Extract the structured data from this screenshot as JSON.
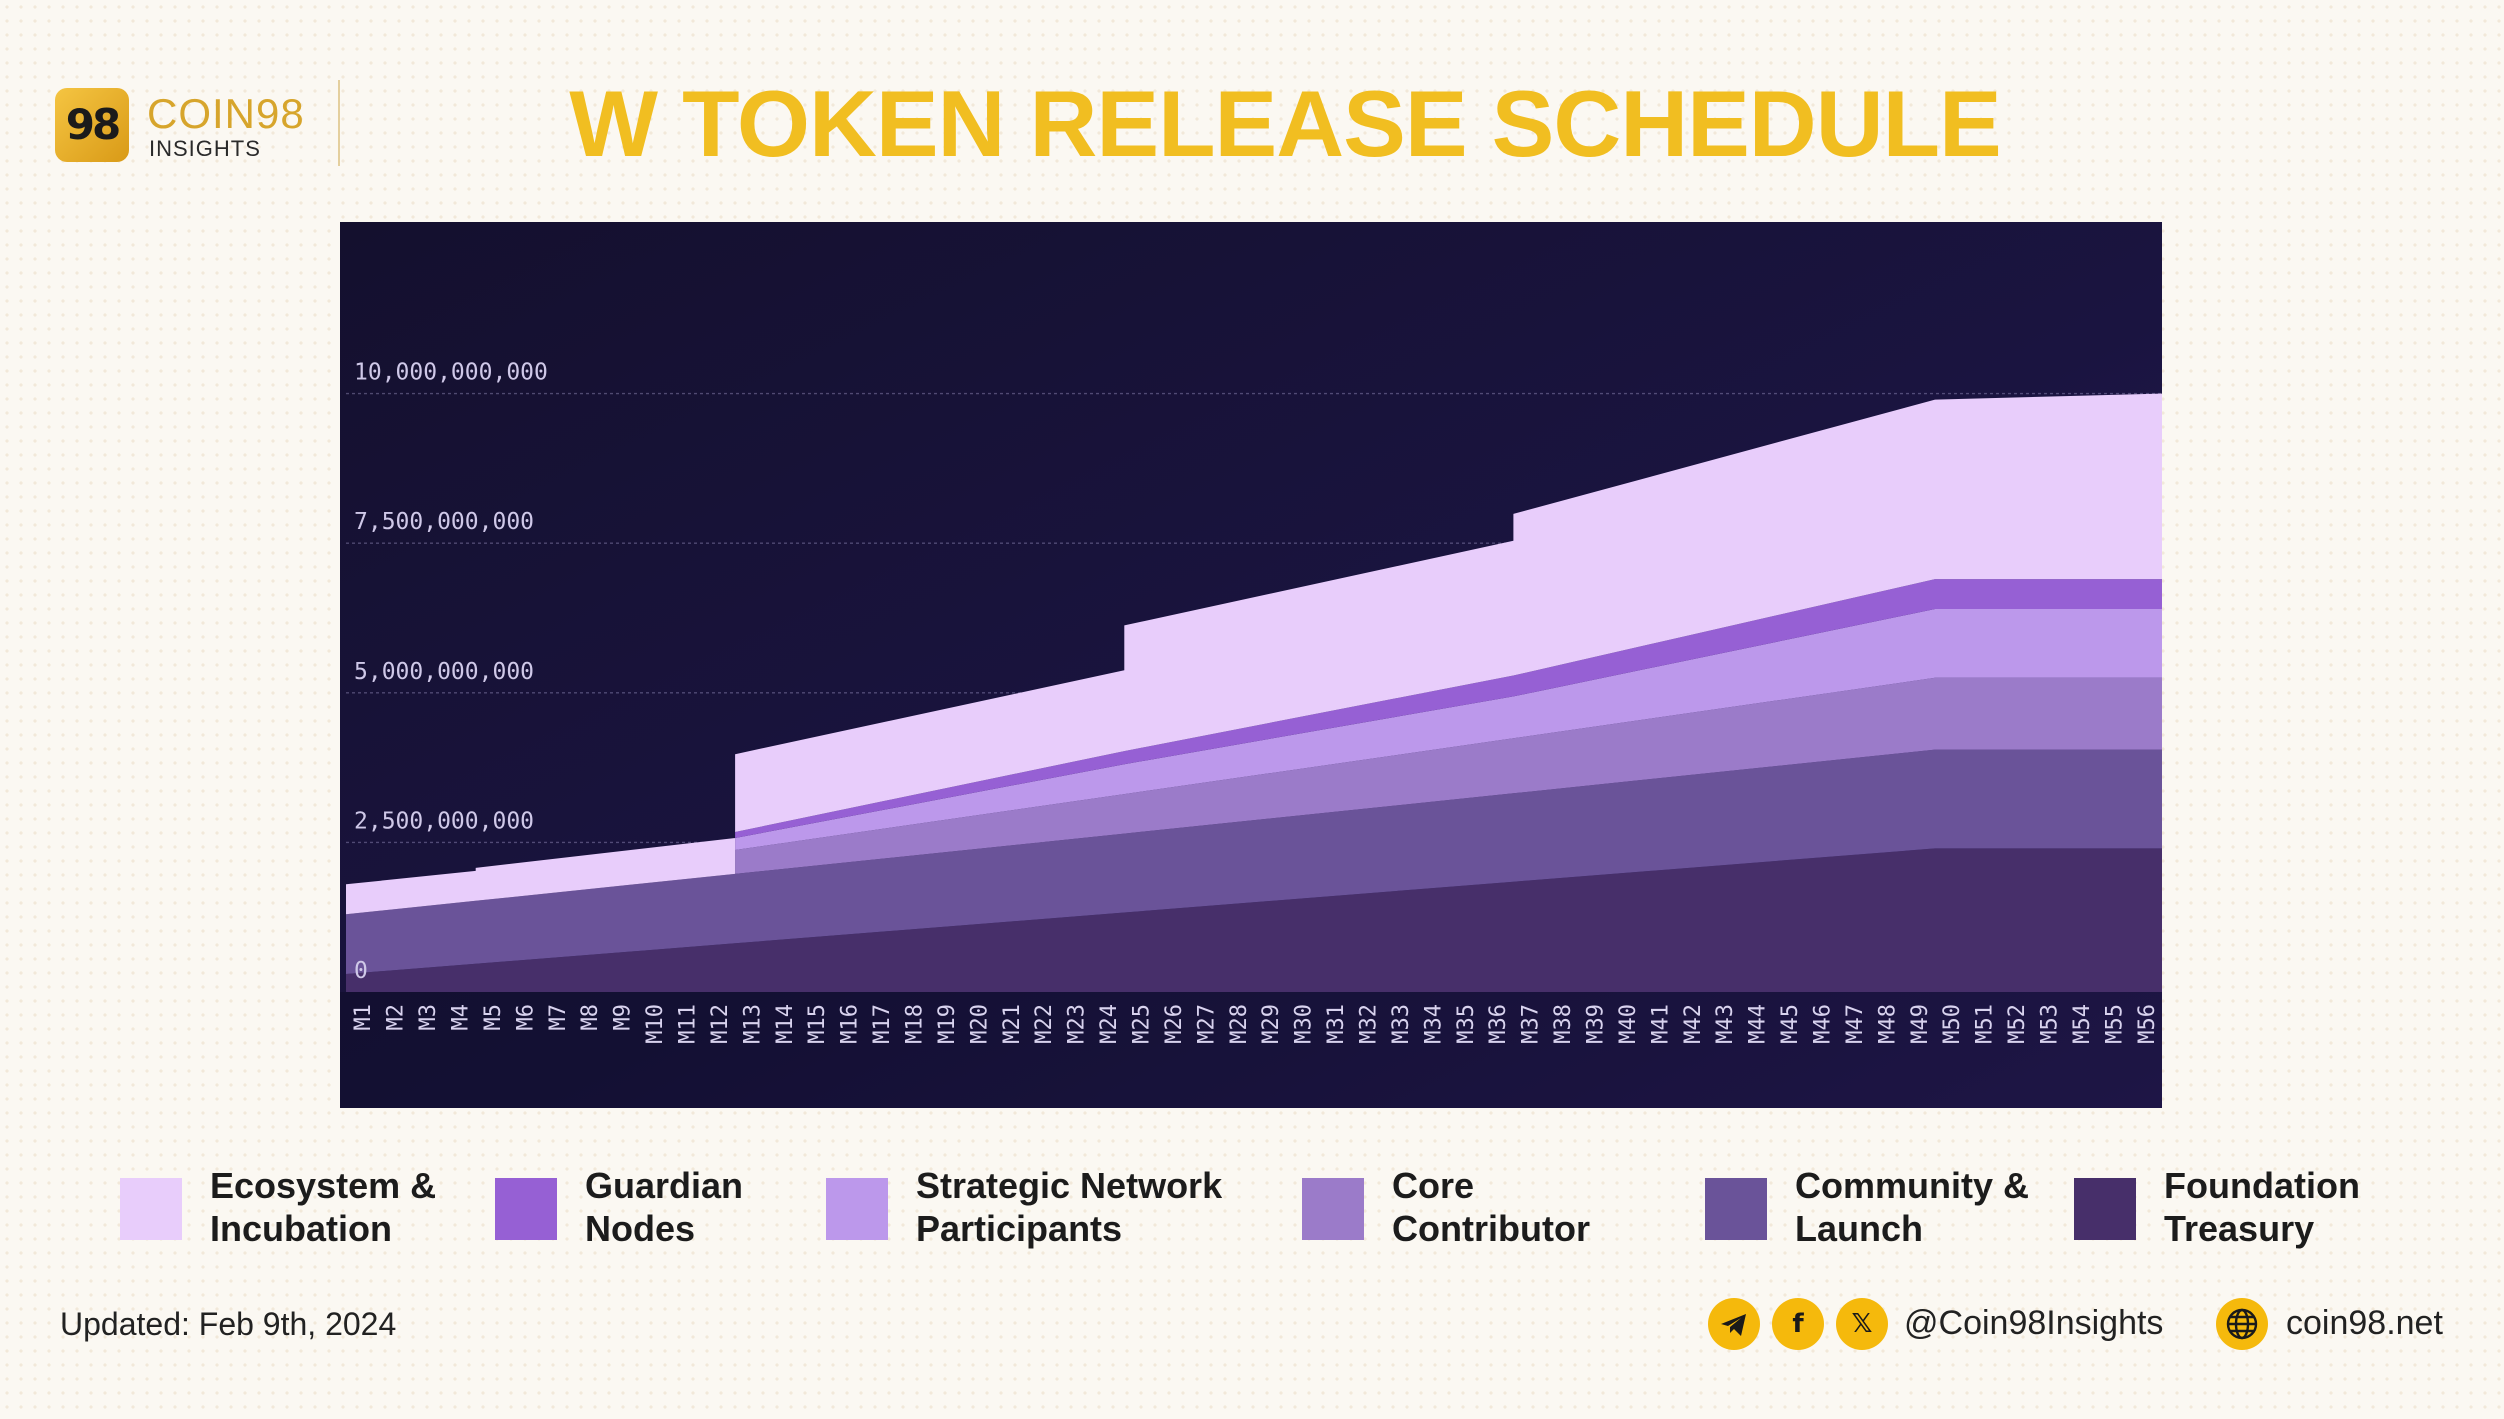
{
  "brand": {
    "badge": "98",
    "name": "COIN98",
    "sub": "INSIGHTS"
  },
  "title": "W TOKEN RELEASE SCHEDULE",
  "updated": "Updated: Feb 9th, 2024",
  "social": {
    "telegram_icon": "telegram-icon",
    "facebook_icon": "facebook-icon",
    "x_icon": "x-icon",
    "handle": "@Coin98Insights",
    "globe_icon": "globe-icon",
    "website": "coin98.net"
  },
  "colors": {
    "background": "#fbf8f2",
    "title": "#f1be21",
    "brand": "#d7a52c",
    "chart_bg_dark": "#14102e",
    "chart_bg_light": "#2a1d5c"
  },
  "chart_data": {
    "type": "area",
    "stacked": true,
    "step": true,
    "title": "",
    "xlabel": "",
    "ylabel": "",
    "ylim": [
      0,
      12500000000
    ],
    "y_ticks": [
      {
        "value": 0,
        "label": "0"
      },
      {
        "value": 2500000000,
        "label": "2,500,000,000"
      },
      {
        "value": 5000000000,
        "label": "5,000,000,000"
      },
      {
        "value": 7500000000,
        "label": "7,500,000,000"
      },
      {
        "value": 10000000000,
        "label": "10,000,000,000"
      }
    ],
    "grid": true,
    "categories": [
      "M1",
      "M2",
      "M3",
      "M4",
      "M5",
      "M6",
      "M7",
      "M8",
      "M9",
      "M10",
      "M11",
      "M12",
      "M13",
      "M14",
      "M15",
      "M16",
      "M17",
      "M18",
      "M19",
      "M20",
      "M21",
      "M22",
      "M23",
      "M24",
      "M25",
      "M26",
      "M27",
      "M28",
      "M29",
      "M30",
      "M31",
      "M32",
      "M33",
      "M34",
      "M35",
      "M36",
      "M37",
      "M38",
      "M39",
      "M40",
      "M41",
      "M42",
      "M43",
      "M44",
      "M45",
      "M46",
      "M47",
      "M48",
      "M49",
      "M50",
      "M51",
      "M52",
      "M53",
      "M54",
      "M55",
      "M56"
    ],
    "series": [
      {
        "name": "Foundation Treasury",
        "color": "#472f6a",
        "keypoints": [
          [
            1,
            300000000
          ],
          [
            50,
            2400000000
          ],
          [
            56,
            2400000000
          ]
        ]
      },
      {
        "name": "Community & Launch",
        "color": "#6a5399",
        "keypoints": [
          [
            1,
            1000000000
          ],
          [
            50,
            1650000000
          ],
          [
            56,
            1650000000
          ]
        ]
      },
      {
        "name": "Core Contributor",
        "color": "#9b7bc9",
        "keypoints": [
          [
            1,
            0
          ],
          [
            13,
            0
          ],
          [
            13,
            400000000
          ],
          [
            50,
            1200000000
          ],
          [
            56,
            1200000000
          ]
        ]
      },
      {
        "name": "Strategic Network Participants",
        "color": "#bc98eb",
        "keypoints": [
          [
            1,
            0
          ],
          [
            13,
            0
          ],
          [
            13,
            200000000
          ],
          [
            25,
            500000000
          ],
          [
            37,
            700000000
          ],
          [
            50,
            1150000000
          ],
          [
            56,
            1150000000
          ]
        ]
      },
      {
        "name": "Guardian Nodes",
        "color": "#9660d4",
        "keypoints": [
          [
            1,
            0
          ],
          [
            13,
            0
          ],
          [
            13,
            100000000
          ],
          [
            25,
            220000000
          ],
          [
            37,
            350000000
          ],
          [
            50,
            500000000
          ],
          [
            56,
            500000000
          ]
        ]
      },
      {
        "name": "Ecosystem & Incubation",
        "color": "#e8cdfb",
        "keypoints": [
          [
            1,
            500000000
          ],
          [
            5,
            500000000
          ],
          [
            5,
            550000000
          ],
          [
            13,
            600000000
          ],
          [
            13,
            1300000000
          ],
          [
            25,
            1350000000
          ],
          [
            25,
            2100000000
          ],
          [
            37,
            2250000000
          ],
          [
            37,
            2700000000
          ],
          [
            50,
            3000000000
          ],
          [
            56,
            3100000000
          ]
        ]
      }
    ]
  },
  "legend": [
    {
      "label": "Ecosystem &\nIncubation",
      "color": "#e8cdfb"
    },
    {
      "label": "Guardian\nNodes",
      "color": "#9660d4"
    },
    {
      "label": "Strategic Network\nParticipants",
      "color": "#bc98eb"
    },
    {
      "label": "Core\nContributor",
      "color": "#9b7bc9"
    },
    {
      "label": "Community &\nLaunch",
      "color": "#6a5399"
    },
    {
      "label": "Foundation\nTreasury",
      "color": "#472f6a"
    }
  ]
}
